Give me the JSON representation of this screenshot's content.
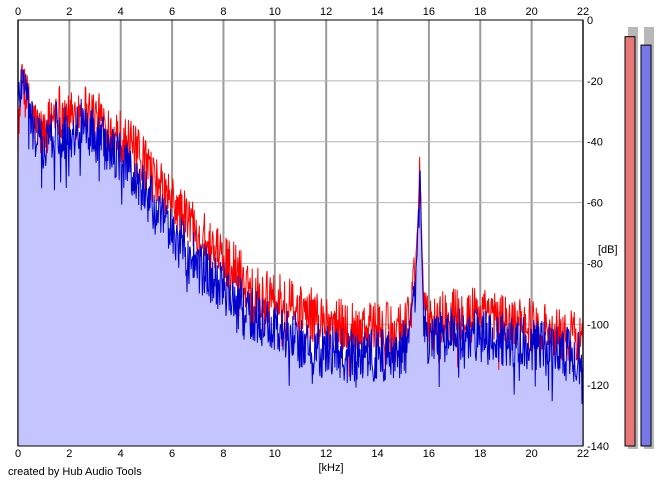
{
  "chart_data": {
    "type": "area",
    "xlabel": "[kHz]",
    "ylabel": "[dB]",
    "xlim": [
      0,
      22
    ],
    "ylim": [
      -140,
      0
    ],
    "x_ticks": [
      0,
      2,
      4,
      6,
      8,
      10,
      12,
      14,
      16,
      18,
      20,
      22
    ],
    "y_ticks": [
      0,
      -20,
      -40,
      -60,
      -80,
      -100,
      -120,
      -140
    ],
    "grid": true,
    "series": [
      {
        "color": "#ff0000",
        "x": [
          0.0,
          0.2,
          0.4,
          0.7,
          1.0,
          1.5,
          2.0,
          2.5,
          3.0,
          3.5,
          4.0,
          4.5,
          5.0,
          5.5,
          6.0,
          6.5,
          7.0,
          7.5,
          8.0,
          8.5,
          9.0,
          9.5,
          10.0,
          10.5,
          11.0,
          11.5,
          12.0,
          12.5,
          13.0,
          13.5,
          14.0,
          14.5,
          15.0,
          15.3,
          15.5,
          15.6,
          15.65,
          15.7,
          15.8,
          16.0,
          16.5,
          17.0,
          17.5,
          18.0,
          18.5,
          19.0,
          19.5,
          20.0,
          20.5,
          21.0,
          21.5,
          22.0
        ],
        "y": [
          -33,
          -20,
          -28,
          -35,
          -38,
          -28,
          -33,
          -28,
          -32,
          -35,
          -38,
          -43,
          -48,
          -55,
          -60,
          -65,
          -68,
          -76,
          -78,
          -82,
          -87,
          -90,
          -92,
          -93,
          -96,
          -97,
          -99,
          -100,
          -101,
          -100,
          -101,
          -102,
          -100,
          -96,
          -80,
          -60,
          -42,
          -65,
          -95,
          -100,
          -98,
          -97,
          -96,
          -97,
          -98,
          -99,
          -100,
          -100,
          -101,
          -103,
          -104,
          -105
        ]
      },
      {
        "color": "#0000cc",
        "x": [
          0.0,
          0.2,
          0.4,
          0.7,
          1.0,
          1.5,
          2.0,
          2.5,
          3.0,
          3.5,
          4.0,
          4.5,
          5.0,
          5.5,
          6.0,
          6.5,
          7.0,
          7.5,
          8.0,
          8.5,
          9.0,
          9.5,
          10.0,
          10.5,
          11.0,
          11.5,
          12.0,
          12.5,
          13.0,
          13.5,
          14.0,
          14.5,
          15.0,
          15.3,
          15.5,
          15.6,
          15.65,
          15.7,
          15.8,
          16.0,
          16.5,
          17.0,
          17.5,
          18.0,
          18.5,
          19.0,
          19.5,
          20.0,
          20.5,
          21.0,
          21.5,
          22.0
        ],
        "y": [
          -28,
          -15,
          -30,
          -38,
          -42,
          -35,
          -38,
          -34,
          -38,
          -42,
          -45,
          -52,
          -57,
          -65,
          -70,
          -75,
          -80,
          -85,
          -88,
          -92,
          -96,
          -99,
          -101,
          -103,
          -106,
          -108,
          -109,
          -110,
          -110,
          -109,
          -110,
          -111,
          -108,
          -102,
          -85,
          -62,
          -45,
          -70,
          -100,
          -106,
          -104,
          -103,
          -103,
          -104,
          -105,
          -105,
          -106,
          -107,
          -108,
          -109,
          -110,
          -111
        ]
      }
    ]
  },
  "level_meters": [
    {
      "color": "#e87878",
      "level": 0.97
    },
    {
      "color": "#7878e8",
      "level": 0.95
    }
  ],
  "credit": "created by Hub Audio Tools"
}
